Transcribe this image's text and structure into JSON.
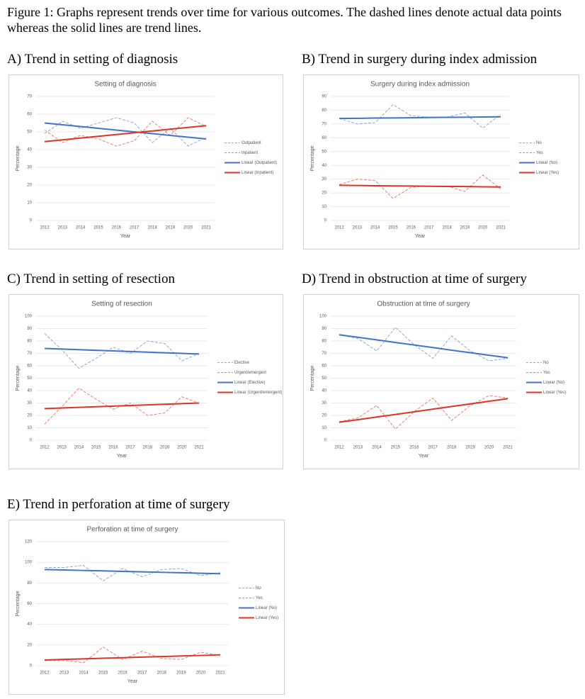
{
  "caption": "Figure 1: Graphs represent trends over time for various outcomes. The dashed lines denote actual data points whereas the solid lines are trend lines.",
  "chart_data": [
    {
      "type": "line",
      "heading": "A) Trend in setting of diagnosis",
      "title": "Setting of diagnosis",
      "xlabel": "Year",
      "ylabel": "Percentage",
      "categories": [
        "2012",
        "2013",
        "2014",
        "2015",
        "2016",
        "2017",
        "2018",
        "2019",
        "2020",
        "2021"
      ],
      "ylim": [
        0,
        70
      ],
      "yticks": [
        0,
        10,
        20,
        30,
        40,
        50,
        60,
        70
      ],
      "grid": true,
      "series": [
        {
          "name": "Outpatient",
          "color": "#8fa9db",
          "dashed": true,
          "values": [
            49,
            56,
            52,
            55,
            58,
            55,
            44,
            52,
            42,
            47
          ]
        },
        {
          "name": "Inpatient",
          "color": "#e8836b",
          "dashed": true,
          "values": [
            51,
            44,
            48,
            46,
            42,
            45,
            56,
            48,
            58,
            53
          ]
        },
        {
          "name": "Linear (Outpatient)",
          "color": "#4472c4",
          "dashed": false,
          "values": [
            55,
            54,
            53,
            52,
            51,
            50,
            49,
            48,
            47,
            46
          ]
        },
        {
          "name": "Linear (Inpatient)",
          "color": "#d9352a",
          "dashed": false,
          "values": [
            44.5,
            45.5,
            46.5,
            47.5,
            48.5,
            49.5,
            50.5,
            51.5,
            52.5,
            53.5
          ]
        }
      ]
    },
    {
      "type": "line",
      "heading": "B) Trend in surgery during index admission",
      "title": "Surgery during index admission",
      "xlabel": "Year",
      "ylabel": "Percentage",
      "categories": [
        "2012",
        "2013",
        "2014",
        "2015",
        "2016",
        "2017",
        "2018",
        "2019",
        "2020",
        "2021"
      ],
      "ylim": [
        0,
        90
      ],
      "yticks": [
        0,
        10,
        20,
        30,
        40,
        50,
        60,
        70,
        80,
        90
      ],
      "grid": true,
      "series": [
        {
          "name": "No",
          "color": "#8fa9db",
          "dashed": true,
          "values": [
            74,
            70,
            71,
            84,
            76,
            75,
            75,
            78,
            67,
            77
          ]
        },
        {
          "name": "Yes",
          "color": "#e8836b",
          "dashed": true,
          "values": [
            26,
            30,
            29,
            16,
            24,
            25,
            25,
            21,
            33,
            23
          ]
        },
        {
          "name": "Linear (No)",
          "color": "#4472c4",
          "dashed": false,
          "values": [
            74,
            74.1,
            74.3,
            74.4,
            74.5,
            74.7,
            74.8,
            74.9,
            75.1,
            75.2
          ]
        },
        {
          "name": "Linear (Yes)",
          "color": "#d9352a",
          "dashed": false,
          "values": [
            25.5,
            25.4,
            25.2,
            25.1,
            25,
            24.8,
            24.7,
            24.6,
            24.4,
            24.3
          ]
        }
      ]
    },
    {
      "type": "line",
      "heading": "C) Trend in setting of resection",
      "title": "Setting of resection",
      "xlabel": "Year",
      "ylabel": "Percentage",
      "categories": [
        "2012",
        "2013",
        "2014",
        "2015",
        "2016",
        "2017",
        "2018",
        "2019",
        "2020",
        "2021"
      ],
      "ylim": [
        0,
        100
      ],
      "yticks": [
        0,
        10,
        20,
        30,
        40,
        50,
        60,
        70,
        80,
        90,
        100
      ],
      "grid": true,
      "series": [
        {
          "name": "Elective",
          "color": "#8fa9db",
          "dashed": true,
          "values": [
            86,
            73,
            58,
            66,
            75,
            70,
            80,
            78,
            64,
            70
          ]
        },
        {
          "name": "Urgent/emergent",
          "color": "#e8836b",
          "dashed": true,
          "values": [
            13,
            27,
            42,
            33,
            25,
            30,
            20,
            22,
            35,
            30
          ]
        },
        {
          "name": "Linear (Elective)",
          "color": "#4472c4",
          "dashed": false,
          "values": [
            74,
            73.5,
            73,
            72.5,
            72,
            71.5,
            71,
            70.5,
            70,
            69.5
          ]
        },
        {
          "name": "Linear (Urgent/emergent)",
          "color": "#d9352a",
          "dashed": false,
          "values": [
            25.5,
            26,
            26.5,
            27,
            27.5,
            28,
            28.5,
            29,
            29.5,
            30
          ]
        }
      ]
    },
    {
      "type": "line",
      "heading": "D) Trend in obstruction at time of surgery",
      "title": "Obstruction at time of surgery",
      "xlabel": "Year",
      "ylabel": "Percentage",
      "categories": [
        "2012",
        "2013",
        "2014",
        "2015",
        "2016",
        "2017",
        "2018",
        "2019",
        "2020",
        "2021"
      ],
      "ylim": [
        0,
        100
      ],
      "yticks": [
        0,
        10,
        20,
        30,
        40,
        50,
        60,
        70,
        80,
        90,
        100
      ],
      "grid": true,
      "series": [
        {
          "name": "No",
          "color": "#8fa9db",
          "dashed": true,
          "values": [
            85,
            82,
            72,
            91,
            77,
            66,
            84,
            72,
            64,
            66
          ]
        },
        {
          "name": "Yes",
          "color": "#e8836b",
          "dashed": true,
          "values": [
            15,
            18,
            28,
            9,
            23,
            34,
            16,
            28,
            36,
            34
          ]
        },
        {
          "name": "Linear (No)",
          "color": "#4472c4",
          "dashed": false,
          "values": [
            85,
            83,
            80.9,
            78.8,
            76.8,
            74.7,
            72.6,
            70.6,
            68.5,
            66.5
          ]
        },
        {
          "name": "Linear (Yes)",
          "color": "#d9352a",
          "dashed": false,
          "values": [
            14.5,
            16.6,
            18.7,
            20.8,
            22.9,
            25.1,
            27.2,
            29.3,
            31.4,
            33.5
          ]
        }
      ]
    },
    {
      "type": "line",
      "heading": "E) Trend in perforation at time of surgery",
      "title": "Perforation at time of surgery",
      "xlabel": "Year",
      "ylabel": "Percentage",
      "categories": [
        "2012",
        "2013",
        "2014",
        "2015",
        "2016",
        "2017",
        "2018",
        "2019",
        "2020",
        "2021"
      ],
      "ylim": [
        0,
        120
      ],
      "yticks": [
        0,
        20,
        40,
        60,
        80,
        100,
        120
      ],
      "grid": true,
      "series": [
        {
          "name": "No",
          "color": "#8fa9db",
          "dashed": true,
          "values": [
            95,
            95,
            97,
            82,
            94,
            86,
            93,
            94,
            87,
            90
          ]
        },
        {
          "name": "Yes",
          "color": "#e8836b",
          "dashed": true,
          "values": [
            5,
            5,
            3,
            18,
            6,
            14,
            7,
            6,
            13,
            10
          ]
        },
        {
          "name": "Linear (No)",
          "color": "#4472c4",
          "dashed": false,
          "values": [
            93,
            92.6,
            92.1,
            91.7,
            91.2,
            90.8,
            90.3,
            89.9,
            89.4,
            89
          ]
        },
        {
          "name": "Linear (Yes)",
          "color": "#d9352a",
          "dashed": false,
          "values": [
            5.5,
            6.1,
            6.6,
            7.2,
            7.7,
            8.3,
            8.8,
            9.4,
            9.9,
            10.5
          ]
        }
      ]
    }
  ]
}
